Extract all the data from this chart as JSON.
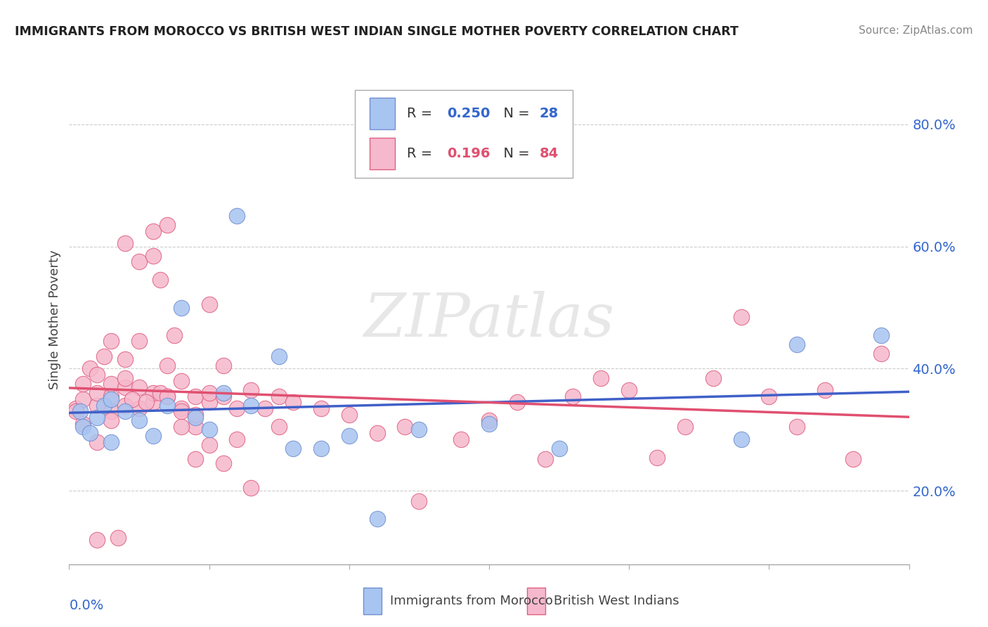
{
  "title": "IMMIGRANTS FROM MOROCCO VS BRITISH WEST INDIAN SINGLE MOTHER POVERTY CORRELATION CHART",
  "source": "Source: ZipAtlas.com",
  "ylabel": "Single Mother Poverty",
  "xlim": [
    0.0,
    0.06
  ],
  "ylim": [
    0.08,
    0.88
  ],
  "ytick_vals": [
    0.2,
    0.4,
    0.6,
    0.8
  ],
  "ytick_labels": [
    "20.0%",
    "40.0%",
    "60.0%",
    "80.0%"
  ],
  "blue_color": "#a8c4f0",
  "pink_color": "#f5b8cc",
  "blue_edge_color": "#7090d0",
  "pink_edge_color": "#e06080",
  "blue_line_color": "#4060c8",
  "pink_line_color": "#e05070",
  "blue_scatter_x": [
    0.0008,
    0.001,
    0.0015,
    0.002,
    0.0025,
    0.003,
    0.003,
    0.004,
    0.005,
    0.006,
    0.007,
    0.008,
    0.009,
    0.01,
    0.011,
    0.012,
    0.013,
    0.015,
    0.016,
    0.018,
    0.02,
    0.022,
    0.025,
    0.03,
    0.035,
    0.048,
    0.052,
    0.058
  ],
  "blue_scatter_y": [
    0.33,
    0.305,
    0.295,
    0.32,
    0.34,
    0.28,
    0.35,
    0.33,
    0.315,
    0.29,
    0.34,
    0.5,
    0.32,
    0.3,
    0.36,
    0.65,
    0.34,
    0.42,
    0.27,
    0.27,
    0.29,
    0.155,
    0.3,
    0.31,
    0.27,
    0.285,
    0.44,
    0.455
  ],
  "pink_scatter_x": [
    0.0005,
    0.001,
    0.001,
    0.0015,
    0.002,
    0.002,
    0.002,
    0.0025,
    0.003,
    0.003,
    0.003,
    0.003,
    0.004,
    0.004,
    0.004,
    0.004,
    0.005,
    0.005,
    0.005,
    0.006,
    0.006,
    0.0065,
    0.007,
    0.007,
    0.0075,
    0.008,
    0.008,
    0.009,
    0.009,
    0.01,
    0.01,
    0.01,
    0.011,
    0.011,
    0.012,
    0.013,
    0.014,
    0.015,
    0.015,
    0.016,
    0.018,
    0.02,
    0.022,
    0.024,
    0.025,
    0.028,
    0.03,
    0.032,
    0.034,
    0.036,
    0.038,
    0.04,
    0.042,
    0.044,
    0.046,
    0.048,
    0.05,
    0.052,
    0.054,
    0.056,
    0.058,
    0.002,
    0.003,
    0.004,
    0.005,
    0.006,
    0.006,
    0.007,
    0.008,
    0.009,
    0.01,
    0.011,
    0.012,
    0.013,
    0.0035,
    0.0045,
    0.0055,
    0.0065,
    0.007,
    0.008,
    0.009,
    0.0005,
    0.001,
    0.002
  ],
  "pink_scatter_y": [
    0.335,
    0.35,
    0.375,
    0.4,
    0.34,
    0.36,
    0.39,
    0.42,
    0.33,
    0.355,
    0.375,
    0.445,
    0.34,
    0.37,
    0.385,
    0.415,
    0.335,
    0.37,
    0.445,
    0.345,
    0.36,
    0.545,
    0.355,
    0.405,
    0.455,
    0.335,
    0.38,
    0.355,
    0.305,
    0.345,
    0.36,
    0.505,
    0.355,
    0.405,
    0.335,
    0.365,
    0.335,
    0.305,
    0.355,
    0.345,
    0.335,
    0.325,
    0.295,
    0.305,
    0.183,
    0.285,
    0.315,
    0.345,
    0.252,
    0.355,
    0.385,
    0.365,
    0.255,
    0.305,
    0.385,
    0.485,
    0.355,
    0.305,
    0.365,
    0.252,
    0.425,
    0.28,
    0.315,
    0.605,
    0.575,
    0.625,
    0.585,
    0.635,
    0.305,
    0.252,
    0.275,
    0.245,
    0.285,
    0.205,
    0.124,
    0.35,
    0.345,
    0.36,
    0.355,
    0.33,
    0.325,
    0.33,
    0.31,
    0.12
  ]
}
